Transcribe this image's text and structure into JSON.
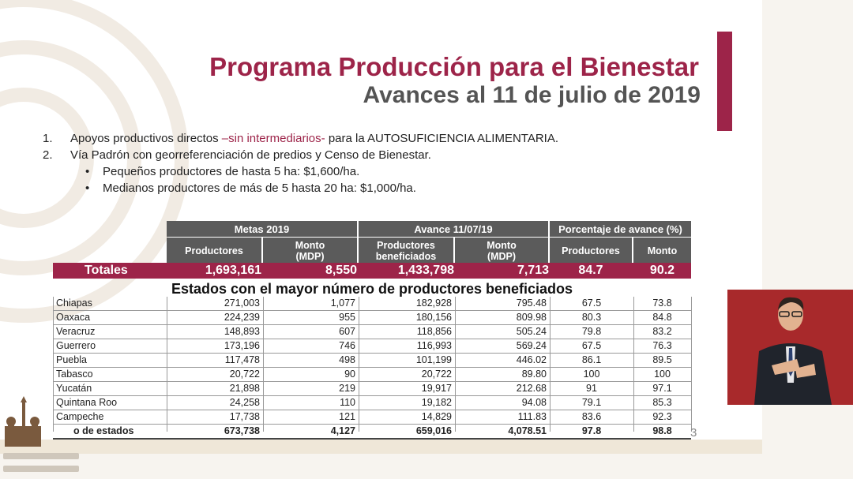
{
  "slide": {
    "title": "Programa Producción para el Bienestar",
    "subtitle": "Avances al 11 de julio de 2019",
    "page_number": "3"
  },
  "bullets": {
    "item1": {
      "num": "1.",
      "text_a": "Apoyos productivos directos ",
      "text_hl": "–sin intermediarios-",
      "text_b": " para la AUTOSUFICIENCIA ALIMENTARIA."
    },
    "item2": {
      "num": "2.",
      "text": "Vía Padrón con georreferenciación de predios y Censo de Bienestar."
    },
    "sub1": "Pequeños productores de hasta 5 ha: $1,600/ha.",
    "sub2": "Medianos productores de más de 5 hasta 20 ha: $1,000/ha."
  },
  "table": {
    "group_headers": [
      "Metas 2019",
      "Avance 11/07/19",
      "Porcentaje de avance (%)"
    ],
    "column_headers": [
      "Productores",
      "Monto\n(MDP)",
      "Productores\nbeneficiados",
      "Monto\n(MDP)",
      "Productores",
      "Monto"
    ],
    "totals": [
      "Totales",
      "1,693,161",
      "8,550",
      "1,433,798",
      "7,713",
      "84.7",
      "90.2"
    ],
    "section_heading": "Estados con el mayor número de productores beneficiados",
    "rows": [
      [
        "Chiapas",
        "271,003",
        "1,077",
        "182,928",
        "795.48",
        "67.5",
        "73.8"
      ],
      [
        "Oaxaca",
        "224,239",
        "955",
        "180,156",
        "809.98",
        "80.3",
        "84.8"
      ],
      [
        "Veracruz",
        "148,893",
        "607",
        "118,856",
        "505.24",
        "79.8",
        "83.2"
      ],
      [
        "Guerrero",
        "173,196",
        "746",
        "116,993",
        "569.24",
        "67.5",
        "76.3"
      ],
      [
        "Puebla",
        "117,478",
        "498",
        "101,199",
        "446.02",
        "86.1",
        "89.5"
      ],
      [
        "Tabasco",
        "20,722",
        "90",
        "20,722",
        "89.80",
        "100",
        "100"
      ],
      [
        "Yucatán",
        "21,898",
        "219",
        "19,917",
        "212.68",
        "91",
        "97.1"
      ],
      [
        "Quintana Roo",
        "24,258",
        "110",
        "19,182",
        "94.08",
        "79.1",
        "85.3"
      ],
      [
        "Campeche",
        "17,738",
        "121",
        "14,829",
        "111.83",
        "83.6",
        "92.3"
      ]
    ],
    "subtotal": [
      "o de estados",
      "673,738",
      "4,127",
      "659,016",
      "4,078.51",
      "97.8",
      "98.8"
    ]
  },
  "colors": {
    "accent": "#9d2449",
    "header_gray": "#5b5b5b"
  },
  "icons": {
    "monument": "monument-icon",
    "logo": "government-logo",
    "video": "sign-language-interpreter-video"
  }
}
